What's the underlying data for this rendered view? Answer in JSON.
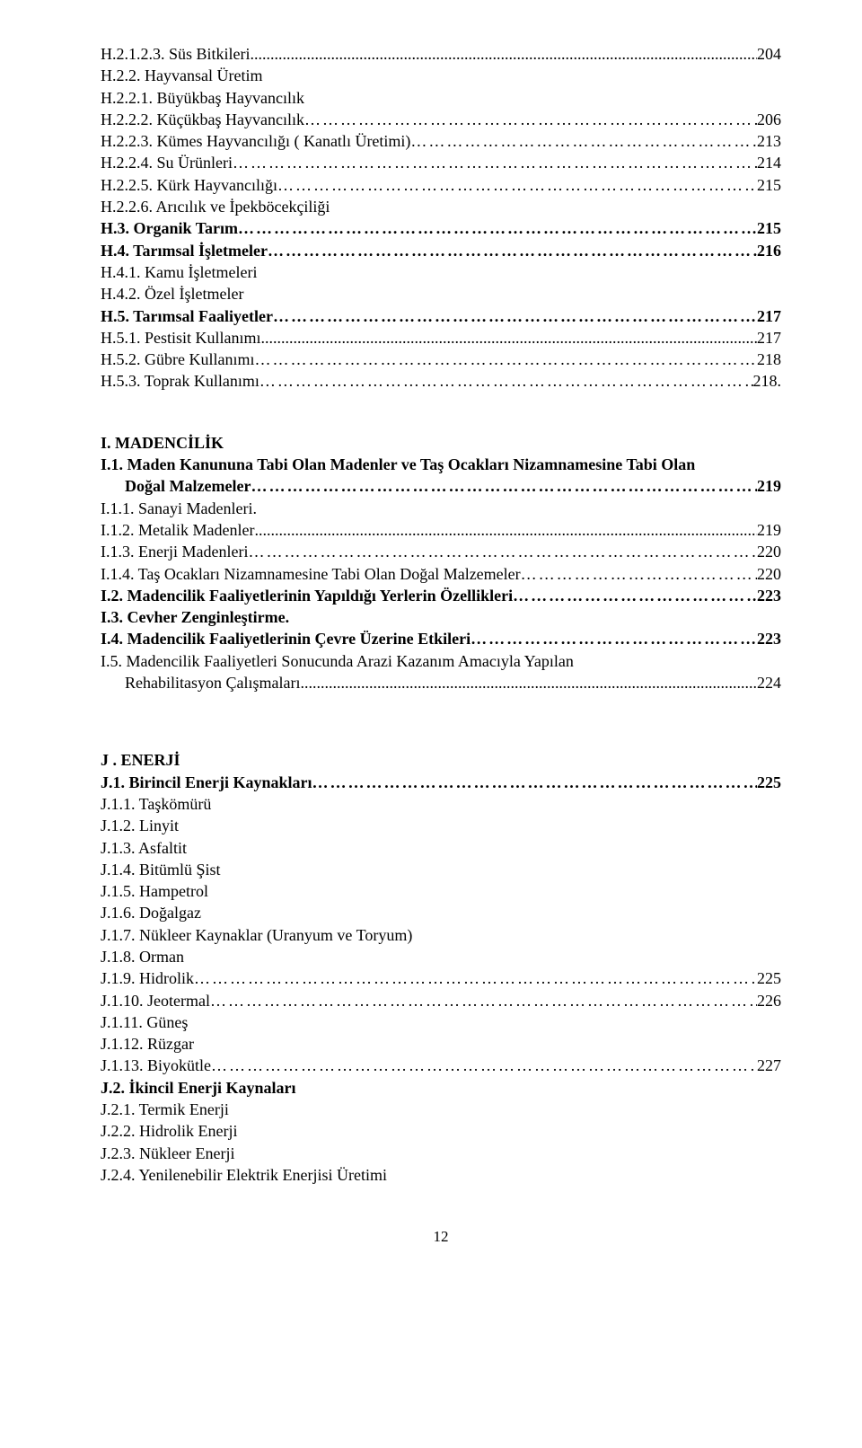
{
  "colors": {
    "text": "#000000",
    "background": "#ffffff"
  },
  "typography": {
    "font_family": "Times New Roman",
    "base_fontsize_pt": 13
  },
  "lines": [
    {
      "kind": "toc",
      "bold": false,
      "label": "H.2.1.2.3. Süs Bitkileri",
      "page": "204",
      "leader": "dots"
    },
    {
      "kind": "plain",
      "bold": false,
      "text": "H.2.2. Hayvansal Üretim"
    },
    {
      "kind": "plain",
      "bold": false,
      "text": "H.2.2.1. Büyükbaş Hayvancılık"
    },
    {
      "kind": "toc",
      "bold": false,
      "label": "H.2.2.2. Küçükbaş Hayvancılık",
      "page": "206",
      "leader": "ellipsis"
    },
    {
      "kind": "toc",
      "bold": false,
      "label": "H.2.2.3. Kümes Hayvancılığı ( Kanatlı Üretimi)",
      "page": "213",
      "leader": "ellipsis"
    },
    {
      "kind": "toc",
      "bold": false,
      "label": "H.2.2.4. Su Ürünleri",
      "page": "214",
      "leader": "ellipsis"
    },
    {
      "kind": "toc",
      "bold": false,
      "label": "H.2.2.5. Kürk Hayvancılığı",
      "page": "215",
      "leader": "ellipsis"
    },
    {
      "kind": "plain",
      "bold": false,
      "text": "H.2.2.6. Arıcılık ve İpekböcekçiliği"
    },
    {
      "kind": "toc",
      "bold": true,
      "label": "H.3. Organik Tarım",
      "page": "215",
      "leader": "ellipsis"
    },
    {
      "kind": "toc",
      "bold": true,
      "label": "H.4. Tarımsal İşletmeler",
      "page": "216",
      "leader": "ellipsis"
    },
    {
      "kind": "plain",
      "bold": false,
      "text": "H.4.1. Kamu İşletmeleri"
    },
    {
      "kind": "plain",
      "bold": false,
      "text": "H.4.2. Özel İşletmeler"
    },
    {
      "kind": "toc",
      "bold": true,
      "label": "H.5. Tarımsal Faaliyetler",
      "page": "217",
      "leader": "ellipsis"
    },
    {
      "kind": "toc",
      "bold": false,
      "label": "H.5.1. Pestisit Kullanımı",
      "page": "217",
      "leader": "dots"
    },
    {
      "kind": "toc",
      "bold": false,
      "label": "H.5.2. Gübre Kullanımı",
      "page": "218",
      "leader": "ellipsis"
    },
    {
      "kind": "toc",
      "bold": false,
      "label": "H.5.3. Toprak Kullanımı",
      "page": "218.",
      "leader": "ellipsis"
    },
    {
      "kind": "gap"
    },
    {
      "kind": "plain",
      "bold": true,
      "text": "I. MADENCİLİK"
    },
    {
      "kind": "plain",
      "bold": true,
      "text": "I.1. Maden Kanununa Tabi Olan Madenler  ve Taş Ocakları Nizamnamesine Tabi Olan"
    },
    {
      "kind": "toc",
      "bold": true,
      "label": "      Doğal Malzemeler",
      "page": "219",
      "leader": "ellipsis"
    },
    {
      "kind": "plain",
      "bold": false,
      "text": "I.1.1. Sanayi Madenleri."
    },
    {
      "kind": "toc",
      "bold": false,
      "label": "I.1.2. Metalik Madenler",
      "page": "219",
      "leader": "dots"
    },
    {
      "kind": "toc",
      "bold": false,
      "label": "I.1.3. Enerji Madenleri",
      "page": "220",
      "leader": "ellipsis"
    },
    {
      "kind": "toc",
      "bold": false,
      "label": "I.1.4. Taş Ocakları Nizamnamesine Tabi Olan Doğal Malzemeler",
      "page": "220",
      "leader": "ellipsis"
    },
    {
      "kind": "toc",
      "bold": true,
      "label": "I.2. Madencilik Faaliyetlerinin Yapıldığı Yerlerin Özellikleri",
      "page": "223",
      "leader": "ellipsis"
    },
    {
      "kind": "plain",
      "bold": true,
      "text": "I.3. Cevher Zenginleştirme."
    },
    {
      "kind": "toc",
      "bold": true,
      "label": "I.4. Madencilik Faaliyetlerinin Çevre Üzerine Etkileri",
      "page": "223",
      "leader": "ellipsis"
    },
    {
      "kind": "plain",
      "bold": false,
      "text": "I.5. Madencilik Faaliyetleri Sonucunda Arazi Kazanım Amacıyla Yapılan"
    },
    {
      "kind": "toc",
      "bold": false,
      "label": "      Rehabilitasyon Çalışmaları",
      "page": "224",
      "leader": "dots"
    },
    {
      "kind": "gap-lg"
    },
    {
      "kind": "plain",
      "bold": true,
      "text": "J . ENERJİ"
    },
    {
      "kind": "toc",
      "bold": true,
      "label": "J.1. Birincil Enerji Kaynakları",
      "page": "225",
      "leader": "ellipsis"
    },
    {
      "kind": "plain",
      "bold": false,
      "text": "J.1.1. Taşkömürü"
    },
    {
      "kind": "plain",
      "bold": false,
      "text": "J.1.2. Linyit"
    },
    {
      "kind": "plain",
      "bold": false,
      "text": "J.1.3. Asfaltit"
    },
    {
      "kind": "plain",
      "bold": false,
      "text": "J.1.4. Bitümlü Şist"
    },
    {
      "kind": "plain",
      "bold": false,
      "text": "J.1.5. Hampetrol"
    },
    {
      "kind": "plain",
      "bold": false,
      "text": "J.1.6. Doğalgaz"
    },
    {
      "kind": "plain",
      "bold": false,
      "text": "J.1.7. Nükleer Kaynaklar (Uranyum ve Toryum)"
    },
    {
      "kind": "plain",
      "bold": false,
      "text": "J.1.8. Orman"
    },
    {
      "kind": "toc",
      "bold": false,
      "label": "J.1.9. Hidrolik",
      "page": "225",
      "leader": "ellipsis"
    },
    {
      "kind": "toc",
      "bold": false,
      "label": "J.1.10. Jeotermal",
      "page": "226",
      "leader": "ellipsis"
    },
    {
      "kind": "plain",
      "bold": false,
      "text": "J.1.11. Güneş"
    },
    {
      "kind": "plain",
      "bold": false,
      "text": "J.1.12. Rüzgar"
    },
    {
      "kind": "toc",
      "bold": false,
      "label": "J.1.13. Biyokütle",
      "page": "227",
      "leader": "ellipsis"
    },
    {
      "kind": "plain",
      "bold": true,
      "text": "J.2. İkincil Enerji Kaynaları"
    },
    {
      "kind": "plain",
      "bold": false,
      "text": "J.2.1. Termik Enerji"
    },
    {
      "kind": "plain",
      "bold": false,
      "text": "J.2.2. Hidrolik Enerji"
    },
    {
      "kind": "plain",
      "bold": false,
      "text": "J.2.3. Nükleer Enerji"
    },
    {
      "kind": "plain",
      "bold": false,
      "text": "J.2.4. Yenilenebilir Elektrik Enerjisi Üretimi"
    }
  ],
  "footer": {
    "page_number": "12"
  }
}
